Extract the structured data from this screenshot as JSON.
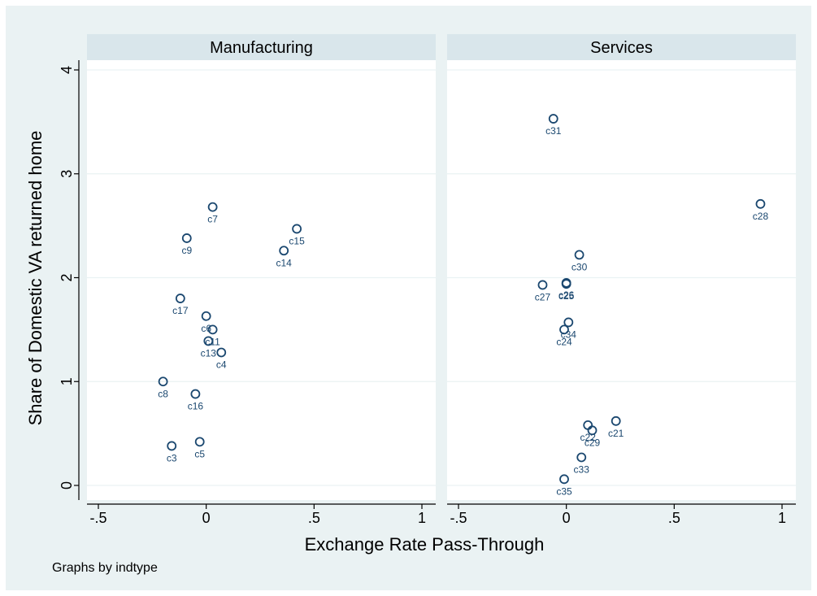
{
  "chart_data": {
    "type": "scatter",
    "ylabel": "Share of Domestic VA returned home",
    "xlabel": "Exchange Rate Pass-Through",
    "note": "Graphs by indtype",
    "xlim": [
      -0.55,
      1.05
    ],
    "ylim": [
      -0.15,
      4.1
    ],
    "x_ticks": [
      -0.5,
      0,
      0.5,
      1
    ],
    "x_tick_labels": [
      "-.5",
      "0",
      ".5",
      "1"
    ],
    "y_ticks": [
      0,
      1,
      2,
      3,
      4
    ],
    "y_tick_labels": [
      "0",
      "1",
      "2",
      "3",
      "4"
    ],
    "grid": true,
    "panels": [
      {
        "title": "Manufacturing",
        "points": [
          {
            "label": "c7",
            "x": 0.03,
            "y": 2.68
          },
          {
            "label": "c15",
            "x": 0.42,
            "y": 2.47
          },
          {
            "label": "c9",
            "x": -0.09,
            "y": 2.38
          },
          {
            "label": "c14",
            "x": 0.36,
            "y": 2.26
          },
          {
            "label": "c17",
            "x": -0.12,
            "y": 1.8
          },
          {
            "label": "c6",
            "x": 0.0,
            "y": 1.63
          },
          {
            "label": "c11",
            "x": 0.03,
            "y": 1.5
          },
          {
            "label": "c13",
            "x": 0.01,
            "y": 1.39
          },
          {
            "label": "c4",
            "x": 0.07,
            "y": 1.28
          },
          {
            "label": "c8",
            "x": -0.2,
            "y": 1.0
          },
          {
            "label": "c16",
            "x": -0.05,
            "y": 0.88
          },
          {
            "label": "c5",
            "x": -0.03,
            "y": 0.42
          },
          {
            "label": "c3",
            "x": -0.16,
            "y": 0.38
          }
        ]
      },
      {
        "title": "Services",
        "points": [
          {
            "label": "c31",
            "x": -0.06,
            "y": 3.53
          },
          {
            "label": "c28",
            "x": 0.9,
            "y": 2.71
          },
          {
            "label": "c30",
            "x": 0.06,
            "y": 2.22
          },
          {
            "label": "c26",
            "x": 0.0,
            "y": 1.95
          },
          {
            "label": "c25",
            "x": 0.0,
            "y": 1.94
          },
          {
            "label": "c27",
            "x": -0.11,
            "y": 1.93
          },
          {
            "label": "c34",
            "x": 0.01,
            "y": 1.57
          },
          {
            "label": "c24",
            "x": -0.01,
            "y": 1.5
          },
          {
            "label": "c21",
            "x": 0.23,
            "y": 0.62
          },
          {
            "label": "c22",
            "x": 0.1,
            "y": 0.58
          },
          {
            "label": "c29",
            "x": 0.12,
            "y": 0.53
          },
          {
            "label": "c33",
            "x": 0.07,
            "y": 0.27
          },
          {
            "label": "c35",
            "x": -0.01,
            "y": 0.06
          }
        ]
      }
    ]
  },
  "colors": {
    "outer_background": "#eaf2f3",
    "plot_background": "#ffffff",
    "strip_background": "#d9e6eb",
    "marker": "#1a476f",
    "grid": "#eaf2f3",
    "text": "#000000"
  }
}
